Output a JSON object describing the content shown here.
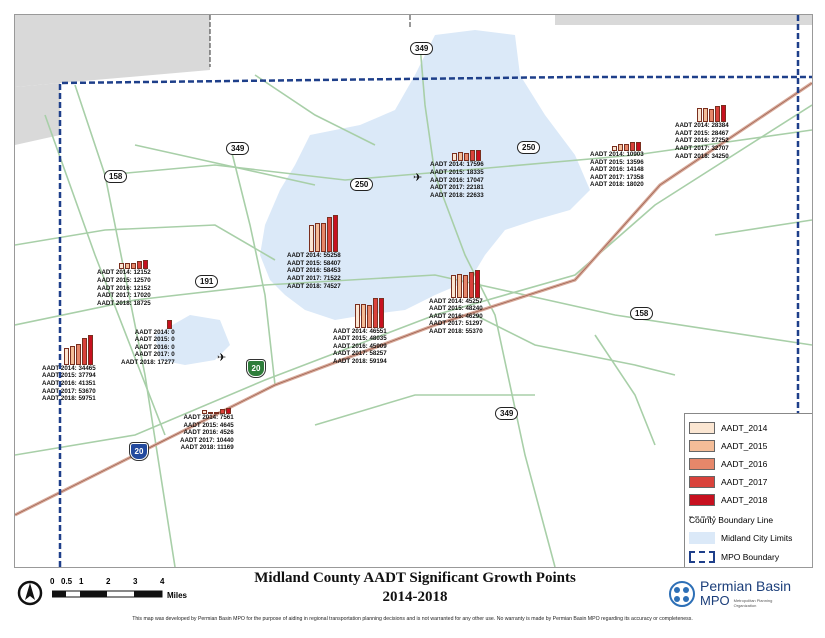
{
  "title": {
    "line1": "Midland County AADT Significant Growth Points",
    "line2": "2014-2018"
  },
  "colors": {
    "AADT_2014": "#fbe6d2",
    "AADT_2015": "#f4bd98",
    "AADT_2016": "#e6876a",
    "AADT_2017": "#d9423b",
    "AADT_2018": "#c7101f",
    "city_limits": "#dbe9f8",
    "mpo_boundary": "#1e3f8a",
    "roads": "#a8cfa8"
  },
  "legend": {
    "series": [
      "AADT_2014",
      "AADT_2015",
      "AADT_2016",
      "AADT_2017",
      "AADT_2018"
    ],
    "county_boundary": "County Boundary Line",
    "city_limits": "Midland City Limits",
    "mpo_boundary": "MPO Boundary"
  },
  "scale": {
    "ticks": [
      "0",
      "0.5",
      "1",
      "2",
      "3",
      "4"
    ],
    "unit": "Miles",
    "north_icon": "north-arrow-icon"
  },
  "shields": [
    "349",
    "349",
    "250",
    "250",
    "158",
    "191",
    "158",
    "349",
    "20",
    "20"
  ],
  "disclaimer": "This map was developed by Permian Basin MPO for the purpose of aiding in regional transportation planning decisions and is not warranted for any other use. No warranty is made by Permian Basin MPO regarding its accuracy or completeness.",
  "logo": {
    "name": "Permian Basin",
    "mpo": "MPO",
    "sub": "Metropolitan Planning Organization"
  },
  "sites": [
    {
      "values": [
        28384,
        28467,
        27252,
        32707,
        34250
      ],
      "labels": [
        "AADT 2014: 28384",
        "AADT 2015: 28467",
        "AADT 2016: 27252",
        "AADT 2017: 32707",
        "AADT 2018: 34250"
      ]
    },
    {
      "values": [
        10903,
        13596,
        14148,
        17358,
        18020
      ],
      "labels": [
        "AADT 2014: 10903",
        "AADT 2015: 13596",
        "AADT 2016: 14148",
        "AADT 2017: 17358",
        "AADT 2018: 18020"
      ]
    },
    {
      "values": [
        17596,
        18335,
        17047,
        22181,
        22633
      ],
      "labels": [
        "AADT 2014: 17596",
        "AADT 2015: 18335",
        "AADT 2016: 17047",
        "AADT 2017: 22181",
        "AADT 2018: 22633"
      ]
    },
    {
      "values": [
        55258,
        58407,
        58453,
        71522,
        74527
      ],
      "labels": [
        "AADT 2014: 55258",
        "AADT 2015: 58407",
        "AADT 2016: 58453",
        "AADT 2017: 71522",
        "AADT 2018: 74527"
      ]
    },
    {
      "values": [
        45257,
        48240,
        46290,
        51297,
        55370
      ],
      "labels": [
        "AADT 2014: 45257",
        "AADT 2015: 48240",
        "AADT 2016: 46290",
        "AADT 2017: 51297",
        "AADT 2018: 55370"
      ]
    },
    {
      "values": [
        46551,
        48035,
        45909,
        58257,
        59194
      ],
      "labels": [
        "AADT 2014: 46551",
        "AADT 2015: 48035",
        "AADT 2016: 45909",
        "AADT 2017: 58257",
        "AADT 2018: 59194"
      ]
    },
    {
      "values": [
        12152,
        12570,
        12152,
        17020,
        18725
      ],
      "labels": [
        "AADT 2014: 12152",
        "AADT 2015: 12570",
        "AADT 2016: 12152",
        "AADT 2017: 17020",
        "AADT 2018: 18725"
      ]
    },
    {
      "values": [
        0,
        0,
        0,
        0,
        17277
      ],
      "labels": [
        "AADT 2014: 0",
        "AADT 2015: 0",
        "AADT 2016: 0",
        "AADT 2017: 0",
        "AADT 2018: 17277"
      ]
    },
    {
      "values": [
        34465,
        37794,
        41351,
        53670,
        59751
      ],
      "labels": [
        "AADT 2014: 34465",
        "AADT 2015: 37794",
        "AADT 2016: 41351",
        "AADT 2017: 53670",
        "AADT 2018: 59751"
      ]
    },
    {
      "values": [
        7561,
        4645,
        4526,
        10440,
        11169
      ],
      "labels": [
        "AADT 2014: 7561",
        "AADT 2015: 4645",
        "AADT 2016: 4526",
        "AADT 2017: 10440",
        "AADT 2018: 11169"
      ]
    }
  ]
}
